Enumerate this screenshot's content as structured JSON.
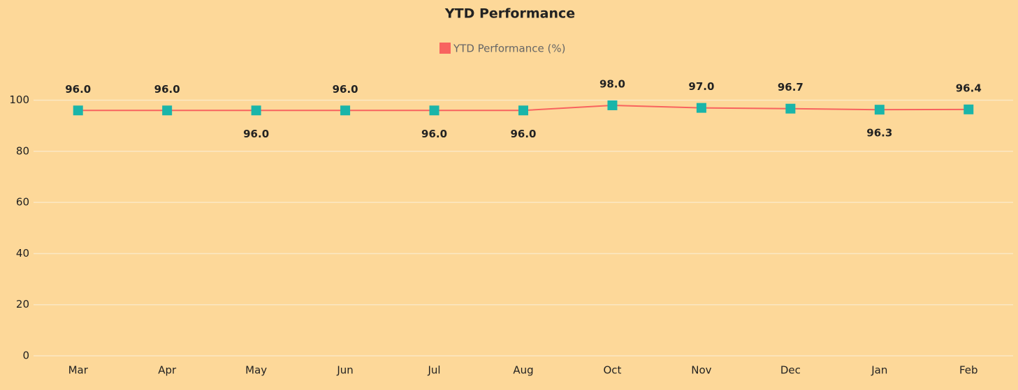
{
  "chart_data": {
    "type": "line",
    "title": "YTD Performance",
    "categories": [
      "Mar",
      "Apr",
      "May",
      "Jun",
      "Jul",
      "Aug",
      "Oct",
      "Nov",
      "Dec",
      "Jan",
      "Feb"
    ],
    "series": [
      {
        "name": "YTD Performance (%)",
        "color": "#f8635f",
        "marker_color": "#1ab5a9",
        "values": [
          96,
          96,
          96,
          96,
          96,
          96,
          98,
          97,
          96.7,
          96.3,
          96.4
        ],
        "value_labels": [
          "96.0",
          "96.0",
          "96.0",
          "96.0",
          "96.0",
          "96.0",
          "98.0",
          "97.0",
          "96.7",
          "96.3",
          "96.4"
        ]
      }
    ],
    "ylim": [
      0,
      110
    ],
    "yticks": [
      0,
      20,
      40,
      60,
      80,
      100
    ],
    "grid": true,
    "legend": "top"
  }
}
